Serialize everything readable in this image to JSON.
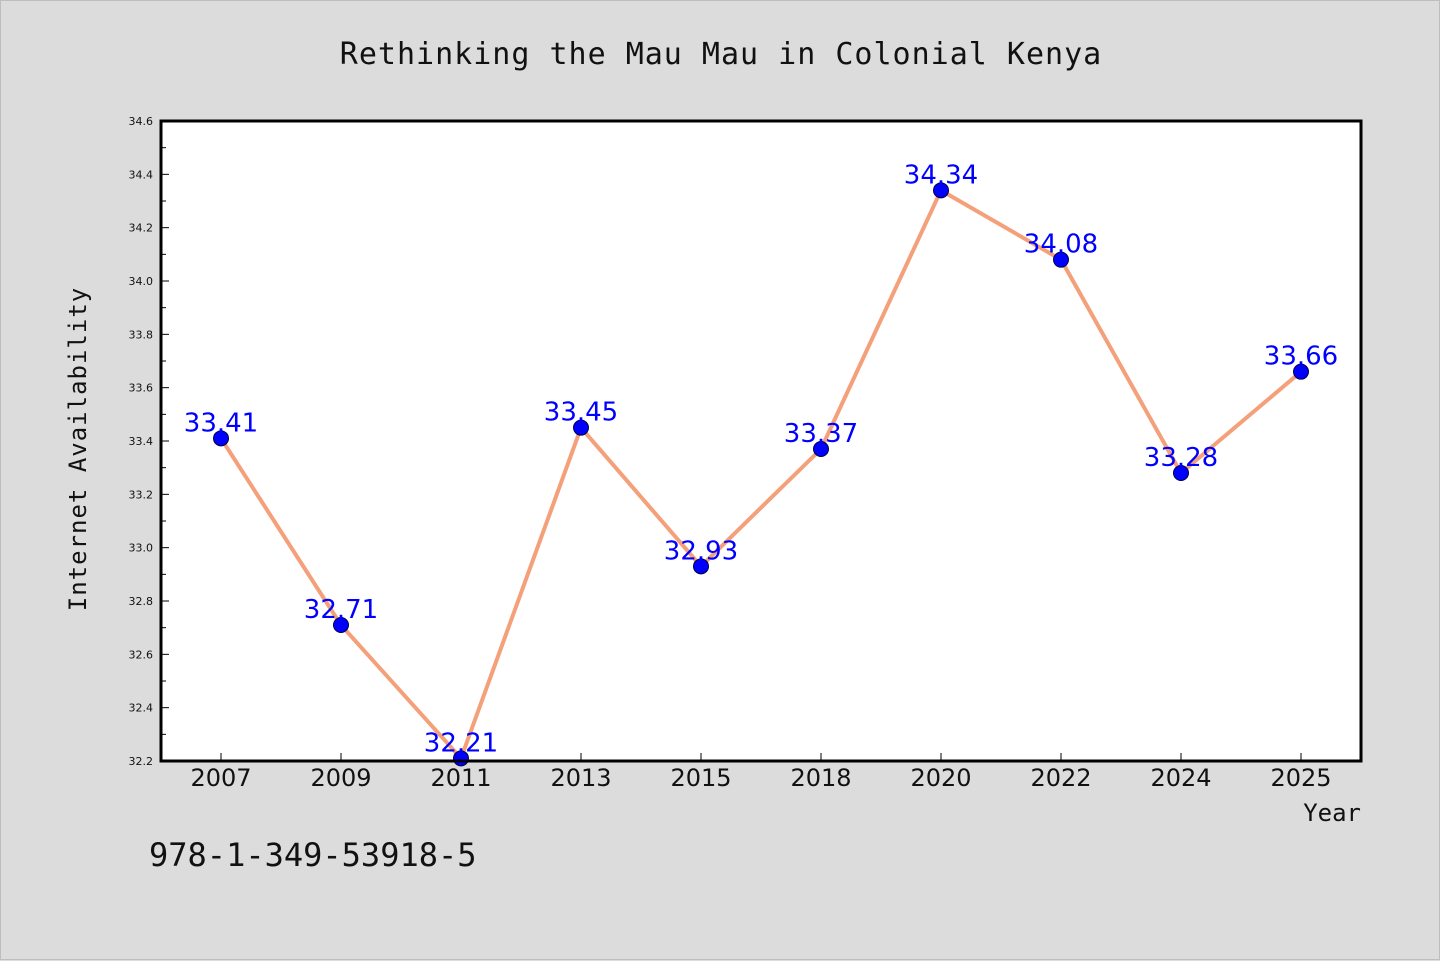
{
  "colors": {
    "background": "#dcdcdc",
    "plot_background": "#ffffff",
    "line": "#f4a07a",
    "marker": "#0000ff",
    "data_label": "#0000ff"
  },
  "footer_text": "978-1-349-53918-5",
  "chart_data": {
    "type": "line",
    "title": "Rethinking the Mau Mau in Colonial Kenya",
    "xlabel": "Year",
    "ylabel": "Internet Availability",
    "categories": [
      "2007",
      "2009",
      "2011",
      "2013",
      "2015",
      "2018",
      "2020",
      "2022",
      "2024",
      "2025"
    ],
    "series": [
      {
        "values": [
          33.41,
          32.71,
          32.21,
          33.45,
          32.93,
          33.37,
          34.34,
          34.08,
          33.28,
          33.66
        ],
        "labels": [
          "33.41",
          "32.71",
          "32.21",
          "33.45",
          "32.93",
          "33.37",
          "34.34",
          "34.08",
          "33.28",
          "33.66"
        ]
      }
    ],
    "ylim": [
      32.2,
      34.6
    ],
    "yticks": [
      "32.2",
      "32.4",
      "32.6",
      "32.8",
      "33.0",
      "33.2",
      "33.4",
      "33.6",
      "33.8",
      "34.0",
      "34.2",
      "34.4",
      "34.6"
    ],
    "grid": false,
    "legend": "none"
  }
}
